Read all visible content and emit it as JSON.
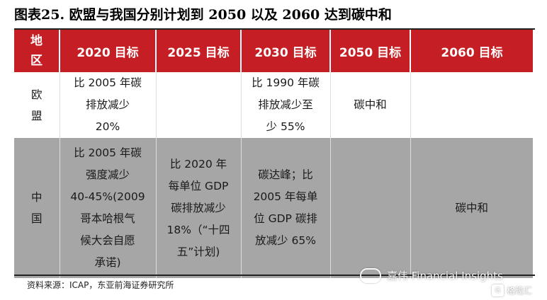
{
  "title": "图表25. 欧盟与我国分别计划到 2050 以及 2060 达到碳中和",
  "table": {
    "headers": [
      "地\n区",
      "2020 目标",
      "2025 目标",
      "2030 目标",
      "2050 目标",
      "2060 目标"
    ],
    "rows": [
      {
        "region": "欧\n盟",
        "cells": [
          "比 2005 年碳\n排放减少\n20%",
          "",
          "比 1990 年碳\n排放减少至\n少 55%",
          "碳中和",
          ""
        ]
      },
      {
        "region": "中\n国",
        "cells": [
          "比 2005 年碳\n强度减少\n40-45%(2009\n哥本哈根气\n候大会自愿\n承诺)",
          "比 2020 年\n每单位 GDP\n碳排放减少\n18%（“十四\n五”计划)",
          "碳达峰；比\n2005 年每单\n位 GDP 碳排\n放减少 65%",
          "",
          "碳中和"
        ]
      }
    ]
  },
  "source": "资料来源：ICAP，东亚前海证券研究所",
  "watermark": {
    "main": "嘉伟 Financial Insights",
    "logo": "格隆汇",
    "logo_icon_char": "G"
  }
}
